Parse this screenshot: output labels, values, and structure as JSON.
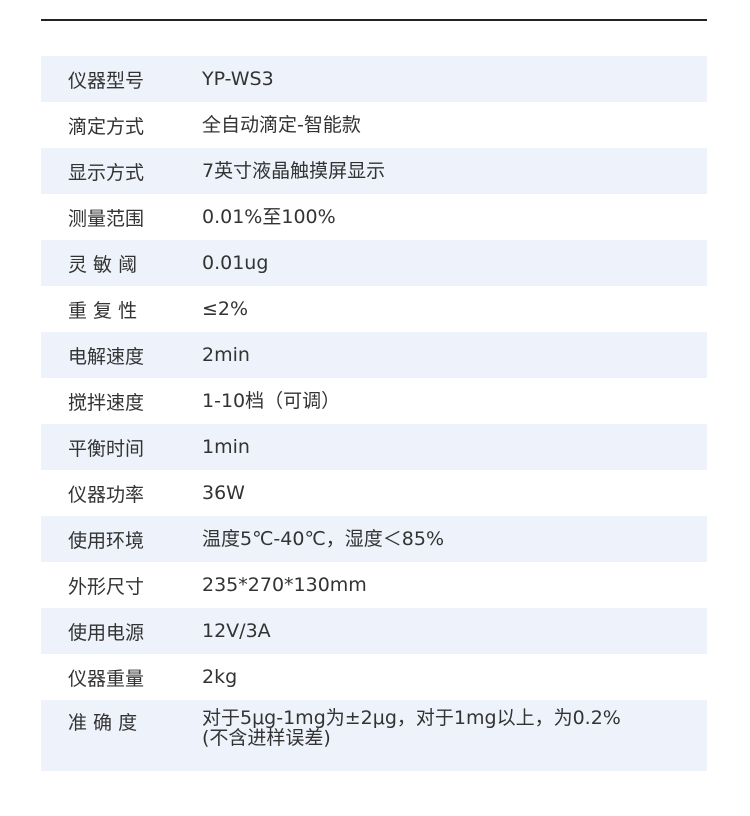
{
  "specs": [
    {
      "label": "仪器型号",
      "value": "YP-WS3"
    },
    {
      "label": "滴定方式",
      "value": "全自动滴定-智能款"
    },
    {
      "label": "显示方式",
      "value": "7英寸液晶触摸屏显示"
    },
    {
      "label": "测量范围",
      "value": "0.01%至100%"
    },
    {
      "label": "灵 敏 阈",
      "value": "0.01ug"
    },
    {
      "label": "重 复 性",
      "value": "≤2%"
    },
    {
      "label": "电解速度",
      "value": "2min"
    },
    {
      "label": "搅拌速度",
      "value": "1-10档（可调）"
    },
    {
      "label": "平衡时间",
      "value": "1min"
    },
    {
      "label": "仪器功率",
      "value": "36W"
    },
    {
      "label": "使用环境",
      "value": "温度5℃-40℃，湿度＜85%"
    },
    {
      "label": "外形尺寸",
      "value": "235*270*130mm"
    },
    {
      "label": "使用电源",
      "value": "12V/3A"
    },
    {
      "label": "仪器重量",
      "value": "2kg"
    },
    {
      "label": "准 确 度",
      "value": "对于5μg-1mg为±2μg，对于1mg以上，为0.2%(不含进样误差)"
    }
  ],
  "colors": {
    "stripe": "#eef3fb",
    "rule": "#222222"
  }
}
